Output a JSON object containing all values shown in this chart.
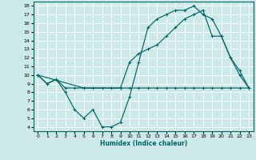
{
  "xlabel": "Humidex (Indice chaleur)",
  "bg_color": "#cce8e8",
  "line_color": "#006666",
  "grid_color": "#ffffff",
  "xlim": [
    -0.5,
    23.5
  ],
  "ylim": [
    3.5,
    18.5
  ],
  "xticks": [
    0,
    1,
    2,
    3,
    4,
    5,
    6,
    7,
    8,
    9,
    10,
    11,
    12,
    13,
    14,
    15,
    16,
    17,
    18,
    19,
    20,
    21,
    22,
    23
  ],
  "yticks": [
    4,
    5,
    6,
    7,
    8,
    9,
    10,
    11,
    12,
    13,
    14,
    15,
    16,
    17,
    18
  ],
  "line1_x": [
    0,
    1,
    2,
    3,
    4,
    5,
    6,
    7,
    8,
    9,
    10,
    11,
    12,
    13,
    14,
    15,
    16,
    17,
    18,
    19,
    20,
    21,
    22,
    23
  ],
  "line1_y": [
    10,
    9,
    9.5,
    8,
    6,
    5,
    6,
    4,
    4,
    4.5,
    7.5,
    11.5,
    15.5,
    16.5,
    17,
    17.5,
    17.5,
    18,
    17,
    16.5,
    14.5,
    12,
    10,
    8.5
  ],
  "line2_x": [
    0,
    1,
    2,
    3,
    4,
    5,
    6,
    7,
    8,
    9,
    10,
    11,
    12,
    13,
    14,
    15,
    16,
    17,
    18,
    19,
    20,
    21,
    22,
    23
  ],
  "line2_y": [
    10,
    9,
    9.5,
    8.5,
    8.5,
    8.5,
    8.5,
    8.5,
    8.5,
    8.5,
    8.5,
    8.5,
    8.5,
    8.5,
    8.5,
    8.5,
    8.5,
    8.5,
    8.5,
    8.5,
    8.5,
    8.5,
    8.5,
    8.5
  ],
  "line3_x": [
    0,
    5,
    9,
    10,
    11,
    12,
    13,
    14,
    15,
    16,
    17,
    18,
    19,
    20,
    21,
    22,
    23
  ],
  "line3_y": [
    10,
    8.5,
    8.5,
    11.5,
    12.5,
    13,
    13.5,
    14.5,
    15.5,
    16.5,
    17,
    17.5,
    14.5,
    14.5,
    12,
    10.5,
    8.5
  ]
}
